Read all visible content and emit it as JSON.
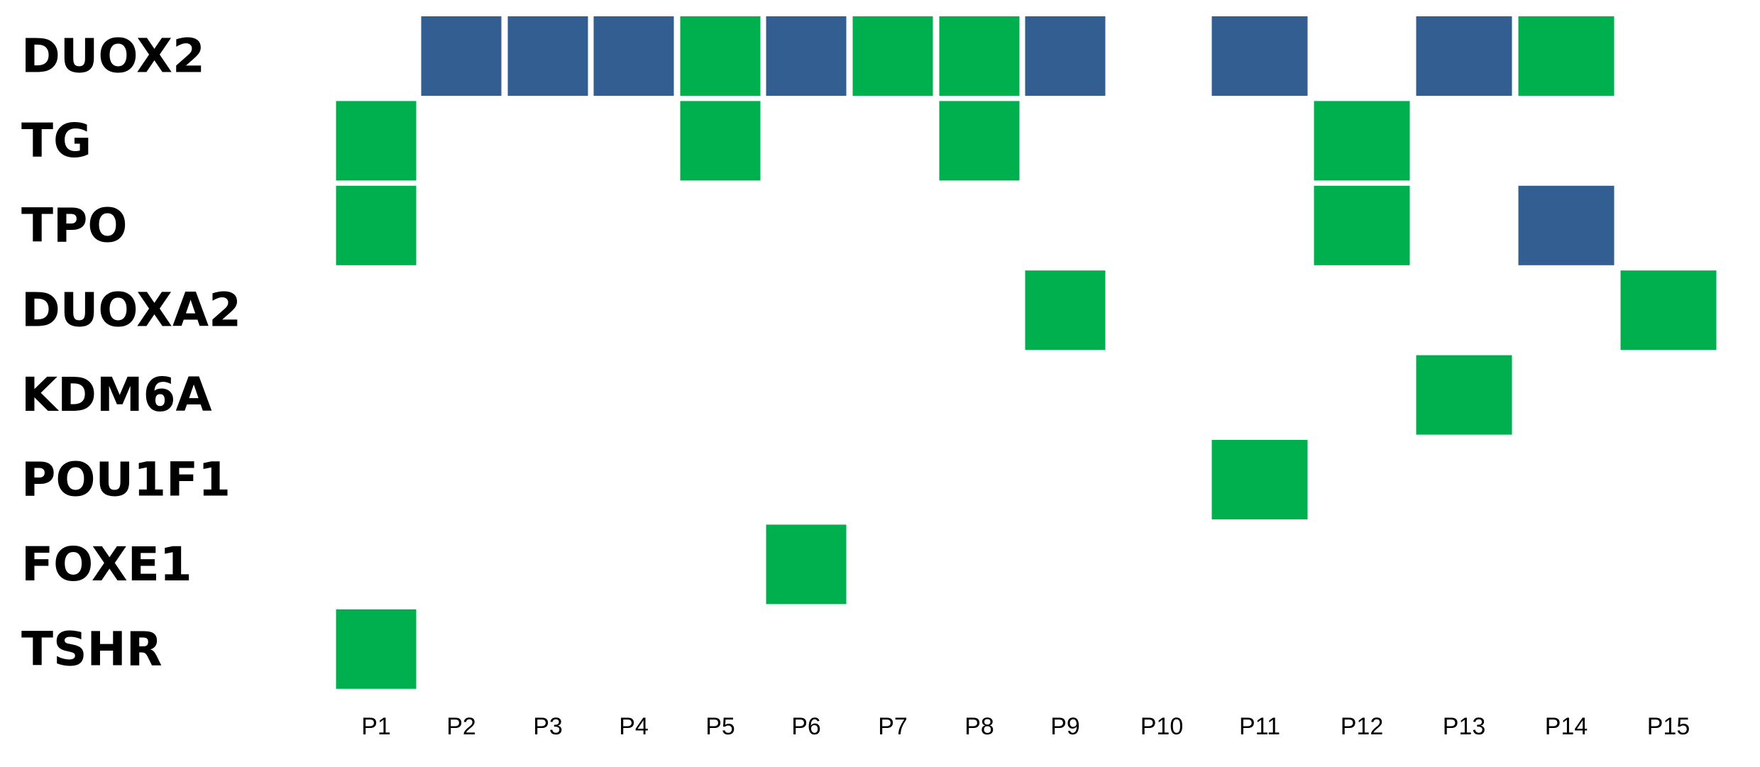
{
  "chart_data": {
    "type": "heatmap",
    "title": "",
    "rows": [
      "DUOX2",
      "TG",
      "TPO",
      "DUOXA2",
      "KDM6A",
      "POU1F1",
      "FOXE1",
      "TSHR"
    ],
    "columns": [
      "P1",
      "P2",
      "P3",
      "P4",
      "P5",
      "P6",
      "P7",
      "P8",
      "P9",
      "P10",
      "P11",
      "P12",
      "P13",
      "P14",
      "P15"
    ],
    "colors": {
      "green": "#00b04f",
      "blue": "#335e91"
    },
    "cells": [
      {
        "row": "DUOX2",
        "col": "P2",
        "color": "blue"
      },
      {
        "row": "DUOX2",
        "col": "P3",
        "color": "blue"
      },
      {
        "row": "DUOX2",
        "col": "P4",
        "color": "blue"
      },
      {
        "row": "DUOX2",
        "col": "P5",
        "color": "green"
      },
      {
        "row": "DUOX2",
        "col": "P6",
        "color": "blue"
      },
      {
        "row": "DUOX2",
        "col": "P7",
        "color": "green"
      },
      {
        "row": "DUOX2",
        "col": "P8",
        "color": "green"
      },
      {
        "row": "DUOX2",
        "col": "P9",
        "color": "blue"
      },
      {
        "row": "DUOX2",
        "col": "P11",
        "color": "blue"
      },
      {
        "row": "DUOX2",
        "col": "P13",
        "color": "blue"
      },
      {
        "row": "DUOX2",
        "col": "P14",
        "color": "green"
      },
      {
        "row": "TG",
        "col": "P1",
        "color": "green"
      },
      {
        "row": "TG",
        "col": "P5",
        "color": "green"
      },
      {
        "row": "TG",
        "col": "P8",
        "color": "green"
      },
      {
        "row": "TG",
        "col": "P12",
        "color": "green"
      },
      {
        "row": "TPO",
        "col": "P1",
        "color": "green"
      },
      {
        "row": "TPO",
        "col": "P12",
        "color": "green"
      },
      {
        "row": "TPO",
        "col": "P14",
        "color": "blue"
      },
      {
        "row": "DUOXA2",
        "col": "P9",
        "color": "green"
      },
      {
        "row": "DUOXA2",
        "col": "P15",
        "color": "green"
      },
      {
        "row": "KDM6A",
        "col": "P13",
        "color": "green"
      },
      {
        "row": "POU1F1",
        "col": "P11",
        "color": "green"
      },
      {
        "row": "FOXE1",
        "col": "P6",
        "color": "green"
      },
      {
        "row": "TSHR",
        "col": "P1",
        "color": "green"
      }
    ]
  }
}
